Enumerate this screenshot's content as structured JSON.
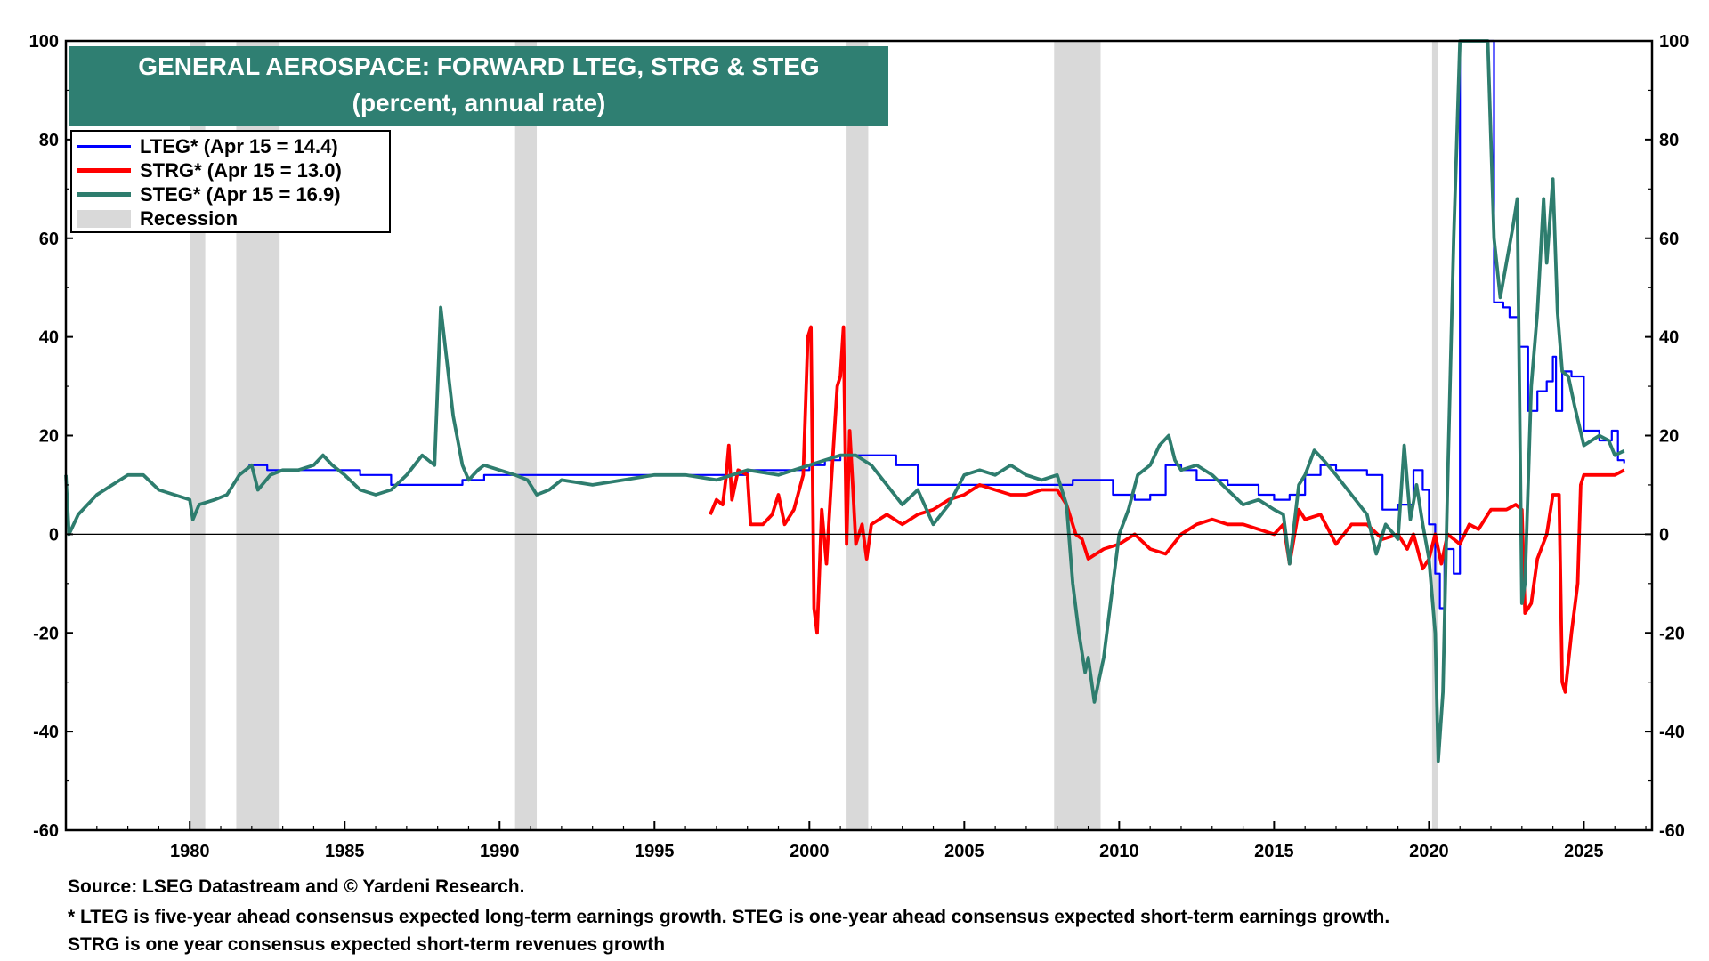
{
  "chart_data": {
    "type": "line",
    "title": "GENERAL AEROSPACE: FORWARD LTEG, STRG & STEG",
    "subtitle": "(percent, annual rate)",
    "xlabel": "",
    "ylabel": "",
    "xlim": [
      1976.0,
      2027.2
    ],
    "ylim": [
      -60,
      100
    ],
    "y_ticks": [
      -60,
      -40,
      -20,
      0,
      20,
      40,
      60,
      80,
      100
    ],
    "x_ticks": [
      1980,
      1985,
      1990,
      1995,
      2000,
      2005,
      2010,
      2015,
      2020,
      2025
    ],
    "grid": false,
    "legend_position": "top-left",
    "recessions": [
      [
        1980.0,
        1980.5
      ],
      [
        1981.5,
        1982.9
      ],
      [
        1990.5,
        1991.2
      ],
      [
        2001.2,
        2001.9
      ],
      [
        2007.9,
        2009.4
      ],
      [
        2020.1,
        2020.3
      ]
    ],
    "series": [
      {
        "name": "LTEG* (Apr 15 = 14.4)",
        "color": "#0000ff",
        "step": true,
        "points": [
          [
            1981.9,
            14
          ],
          [
            1982.5,
            13
          ],
          [
            1983.5,
            13
          ],
          [
            1985.0,
            13
          ],
          [
            1985.5,
            12
          ],
          [
            1986.5,
            10
          ],
          [
            1988.0,
            10
          ],
          [
            1988.8,
            11
          ],
          [
            1989.5,
            12
          ],
          [
            1990.8,
            12
          ],
          [
            1991.5,
            12
          ],
          [
            1993.0,
            12
          ],
          [
            1996.0,
            12
          ],
          [
            1998.0,
            13
          ],
          [
            2000.0,
            14
          ],
          [
            2000.5,
            15
          ],
          [
            2001.0,
            16
          ],
          [
            2002.0,
            16
          ],
          [
            2002.8,
            14
          ],
          [
            2003.5,
            10
          ],
          [
            2007.0,
            10
          ],
          [
            2008.5,
            11
          ],
          [
            2009.8,
            8
          ],
          [
            2010.5,
            7
          ],
          [
            2011.0,
            8
          ],
          [
            2011.5,
            14
          ],
          [
            2012.0,
            13
          ],
          [
            2012.5,
            11
          ],
          [
            2013.5,
            10
          ],
          [
            2014.5,
            8
          ],
          [
            2015.0,
            7
          ],
          [
            2015.5,
            8
          ],
          [
            2016.0,
            12
          ],
          [
            2016.5,
            14
          ],
          [
            2017.0,
            13
          ],
          [
            2018.0,
            12
          ],
          [
            2018.5,
            5
          ],
          [
            2019.0,
            6
          ],
          [
            2019.5,
            13
          ],
          [
            2019.8,
            9
          ],
          [
            2020.0,
            2
          ],
          [
            2020.2,
            -8
          ],
          [
            2020.35,
            -15
          ],
          [
            2020.5,
            -3
          ],
          [
            2020.8,
            -8
          ],
          [
            2021.0,
            100
          ],
          [
            2021.2,
            100
          ],
          [
            2022.1,
            47
          ],
          [
            2022.4,
            46
          ],
          [
            2022.6,
            44
          ],
          [
            2022.9,
            38
          ],
          [
            2023.2,
            25
          ],
          [
            2023.5,
            29
          ],
          [
            2023.8,
            31
          ],
          [
            2024.0,
            36
          ],
          [
            2024.1,
            25
          ],
          [
            2024.3,
            33
          ],
          [
            2024.6,
            32
          ],
          [
            2025.0,
            21
          ],
          [
            2025.5,
            19
          ],
          [
            2025.9,
            21
          ],
          [
            2026.1,
            15
          ],
          [
            2026.3,
            14.4
          ]
        ]
      },
      {
        "name": "STRG* (Apr 15 = 13.0)",
        "color": "#ff0000",
        "step": false,
        "points": [
          [
            1996.8,
            4
          ],
          [
            1997.0,
            7
          ],
          [
            1997.2,
            6
          ],
          [
            1997.3,
            11
          ],
          [
            1997.4,
            18
          ],
          [
            1997.5,
            7
          ],
          [
            1997.7,
            13
          ],
          [
            1998.0,
            12
          ],
          [
            1998.1,
            2
          ],
          [
            1998.5,
            2
          ],
          [
            1998.8,
            4
          ],
          [
            1999.0,
            8
          ],
          [
            1999.2,
            2
          ],
          [
            1999.5,
            5
          ],
          [
            1999.8,
            12
          ],
          [
            1999.95,
            40
          ],
          [
            2000.05,
            42
          ],
          [
            2000.15,
            -15
          ],
          [
            2000.25,
            -20
          ],
          [
            2000.4,
            5
          ],
          [
            2000.55,
            -6
          ],
          [
            2000.7,
            10
          ],
          [
            2000.9,
            30
          ],
          [
            2001.0,
            32
          ],
          [
            2001.1,
            42
          ],
          [
            2001.2,
            -2
          ],
          [
            2001.3,
            21
          ],
          [
            2001.4,
            10
          ],
          [
            2001.5,
            -2
          ],
          [
            2001.7,
            2
          ],
          [
            2001.85,
            -5
          ],
          [
            2002.0,
            2
          ],
          [
            2002.5,
            4
          ],
          [
            2003.0,
            2
          ],
          [
            2003.5,
            4
          ],
          [
            2004.0,
            5
          ],
          [
            2004.5,
            7
          ],
          [
            2005.0,
            8
          ],
          [
            2005.5,
            10
          ],
          [
            2006.0,
            9
          ],
          [
            2006.5,
            8
          ],
          [
            2007.0,
            8
          ],
          [
            2007.5,
            9
          ],
          [
            2008.0,
            9
          ],
          [
            2008.3,
            6
          ],
          [
            2008.6,
            0
          ],
          [
            2008.8,
            -1
          ],
          [
            2009.0,
            -5
          ],
          [
            2009.5,
            -3
          ],
          [
            2010.0,
            -2
          ],
          [
            2010.5,
            0
          ],
          [
            2011.0,
            -3
          ],
          [
            2011.5,
            -4
          ],
          [
            2012.0,
            0
          ],
          [
            2012.5,
            2
          ],
          [
            2013.0,
            3
          ],
          [
            2013.5,
            2
          ],
          [
            2014.0,
            2
          ],
          [
            2014.5,
            1
          ],
          [
            2015.0,
            0
          ],
          [
            2015.3,
            2
          ],
          [
            2015.5,
            -6
          ],
          [
            2015.8,
            5
          ],
          [
            2016.0,
            3
          ],
          [
            2016.5,
            4
          ],
          [
            2017.0,
            -2
          ],
          [
            2017.5,
            2
          ],
          [
            2018.0,
            2
          ],
          [
            2018.5,
            -1
          ],
          [
            2019.0,
            0
          ],
          [
            2019.3,
            -3
          ],
          [
            2019.5,
            0
          ],
          [
            2019.8,
            -7
          ],
          [
            2020.0,
            -5
          ],
          [
            2020.2,
            0
          ],
          [
            2020.4,
            -6
          ],
          [
            2020.6,
            0
          ],
          [
            2020.8,
            -1
          ],
          [
            2021.0,
            -2
          ],
          [
            2021.3,
            2
          ],
          [
            2021.6,
            1
          ],
          [
            2022.0,
            5
          ],
          [
            2022.5,
            5
          ],
          [
            2022.8,
            6
          ],
          [
            2023.0,
            5
          ],
          [
            2023.1,
            -16
          ],
          [
            2023.3,
            -14
          ],
          [
            2023.5,
            -5
          ],
          [
            2023.8,
            0
          ],
          [
            2024.0,
            8
          ],
          [
            2024.2,
            8
          ],
          [
            2024.3,
            -30
          ],
          [
            2024.4,
            -32
          ],
          [
            2024.6,
            -20
          ],
          [
            2024.8,
            -10
          ],
          [
            2024.9,
            10
          ],
          [
            2025.0,
            12
          ],
          [
            2025.5,
            12
          ],
          [
            2026.0,
            12
          ],
          [
            2026.3,
            13
          ]
        ]
      },
      {
        "name": "STEG* (Apr 15 = 16.9)",
        "color": "#2e7d6e",
        "step": false,
        "points": [
          [
            1976.0,
            12
          ],
          [
            1976.1,
            0
          ],
          [
            1976.4,
            4
          ],
          [
            1977.0,
            8
          ],
          [
            1977.5,
            10
          ],
          [
            1978.0,
            12
          ],
          [
            1978.5,
            12
          ],
          [
            1979.0,
            9
          ],
          [
            1979.5,
            8
          ],
          [
            1980.0,
            7
          ],
          [
            1980.1,
            3
          ],
          [
            1980.3,
            6
          ],
          [
            1980.8,
            7
          ],
          [
            1981.2,
            8
          ],
          [
            1981.6,
            12
          ],
          [
            1982.0,
            14
          ],
          [
            1982.2,
            9
          ],
          [
            1982.6,
            12
          ],
          [
            1983.0,
            13
          ],
          [
            1983.5,
            13
          ],
          [
            1984.0,
            14
          ],
          [
            1984.3,
            16
          ],
          [
            1984.6,
            14
          ],
          [
            1985.0,
            12
          ],
          [
            1985.5,
            9
          ],
          [
            1986.0,
            8
          ],
          [
            1986.5,
            9
          ],
          [
            1987.0,
            12
          ],
          [
            1987.5,
            16
          ],
          [
            1987.9,
            14
          ],
          [
            1988.1,
            46
          ],
          [
            1988.3,
            35
          ],
          [
            1988.5,
            24
          ],
          [
            1988.8,
            14
          ],
          [
            1989.0,
            11
          ],
          [
            1989.3,
            13
          ],
          [
            1989.5,
            14
          ],
          [
            1990.0,
            13
          ],
          [
            1990.5,
            12
          ],
          [
            1990.9,
            11
          ],
          [
            1991.2,
            8
          ],
          [
            1991.6,
            9
          ],
          [
            1992.0,
            11
          ],
          [
            1993.0,
            10
          ],
          [
            1994.0,
            11
          ],
          [
            1995.0,
            12
          ],
          [
            1996.0,
            12
          ],
          [
            1997.0,
            11
          ],
          [
            1998.0,
            13
          ],
          [
            1999.0,
            12
          ],
          [
            2000.0,
            14
          ],
          [
            2000.5,
            15
          ],
          [
            2001.0,
            16
          ],
          [
            2001.5,
            16
          ],
          [
            2002.0,
            14
          ],
          [
            2002.5,
            10
          ],
          [
            2003.0,
            6
          ],
          [
            2003.5,
            9
          ],
          [
            2004.0,
            2
          ],
          [
            2004.5,
            6
          ],
          [
            2005.0,
            12
          ],
          [
            2005.5,
            13
          ],
          [
            2006.0,
            12
          ],
          [
            2006.5,
            14
          ],
          [
            2007.0,
            12
          ],
          [
            2007.5,
            11
          ],
          [
            2008.0,
            12
          ],
          [
            2008.3,
            6
          ],
          [
            2008.5,
            -10
          ],
          [
            2008.7,
            -20
          ],
          [
            2008.9,
            -28
          ],
          [
            2009.0,
            -25
          ],
          [
            2009.2,
            -34
          ],
          [
            2009.5,
            -25
          ],
          [
            2009.8,
            -10
          ],
          [
            2010.0,
            0
          ],
          [
            2010.3,
            5
          ],
          [
            2010.6,
            12
          ],
          [
            2011.0,
            14
          ],
          [
            2011.3,
            18
          ],
          [
            2011.6,
            20
          ],
          [
            2011.8,
            15
          ],
          [
            2012.0,
            13
          ],
          [
            2012.5,
            14
          ],
          [
            2013.0,
            12
          ],
          [
            2013.5,
            9
          ],
          [
            2014.0,
            6
          ],
          [
            2014.5,
            7
          ],
          [
            2015.0,
            5
          ],
          [
            2015.3,
            4
          ],
          [
            2015.5,
            -6
          ],
          [
            2015.8,
            10
          ],
          [
            2016.0,
            12
          ],
          [
            2016.3,
            17
          ],
          [
            2016.6,
            15
          ],
          [
            2017.0,
            12
          ],
          [
            2017.5,
            8
          ],
          [
            2018.0,
            4
          ],
          [
            2018.3,
            -4
          ],
          [
            2018.6,
            2
          ],
          [
            2019.0,
            -1
          ],
          [
            2019.2,
            18
          ],
          [
            2019.4,
            3
          ],
          [
            2019.6,
            10
          ],
          [
            2019.8,
            2
          ],
          [
            2020.0,
            -5
          ],
          [
            2020.2,
            -20
          ],
          [
            2020.3,
            -46
          ],
          [
            2020.45,
            -32
          ],
          [
            2020.6,
            10
          ],
          [
            2020.8,
            60
          ],
          [
            2020.9,
            80
          ],
          [
            2021.0,
            100
          ],
          [
            2021.3,
            100
          ],
          [
            2021.9,
            100
          ],
          [
            2022.1,
            60
          ],
          [
            2022.3,
            48
          ],
          [
            2022.5,
            55
          ],
          [
            2022.7,
            62
          ],
          [
            2022.85,
            68
          ],
          [
            2023.0,
            -14
          ],
          [
            2023.1,
            -10
          ],
          [
            2023.3,
            30
          ],
          [
            2023.5,
            45
          ],
          [
            2023.7,
            68
          ],
          [
            2023.8,
            55
          ],
          [
            2024.0,
            72
          ],
          [
            2024.15,
            45
          ],
          [
            2024.3,
            33
          ],
          [
            2024.5,
            32
          ],
          [
            2024.7,
            26
          ],
          [
            2025.0,
            18
          ],
          [
            2025.5,
            20
          ],
          [
            2025.8,
            19
          ],
          [
            2026.0,
            16
          ],
          [
            2026.3,
            16.9
          ]
        ]
      }
    ]
  },
  "legend": {
    "items": [
      {
        "label": "LTEG* (Apr 15 = 14.4)",
        "color": "#0000ff"
      },
      {
        "label": "STRG* (Apr 15 = 13.0)",
        "color": "#ff0000"
      },
      {
        "label": "STEG* (Apr 15 = 16.9)",
        "color": "#2e7d6e"
      },
      {
        "label": "Recession",
        "color": "#d9d9d9"
      }
    ]
  },
  "colors": {
    "title_bg": "#2f7f72",
    "recession": "#d9d9d9"
  },
  "footer": {
    "source": "Source: LSEG Datastream and © Yardeni Research.",
    "note1": "* LTEG is five-year ahead consensus expected long-term earnings growth. STEG is one-year ahead consensus expected short-term earnings growth.",
    "note2": "STRG is one year consensus expected short-term revenues growth"
  }
}
